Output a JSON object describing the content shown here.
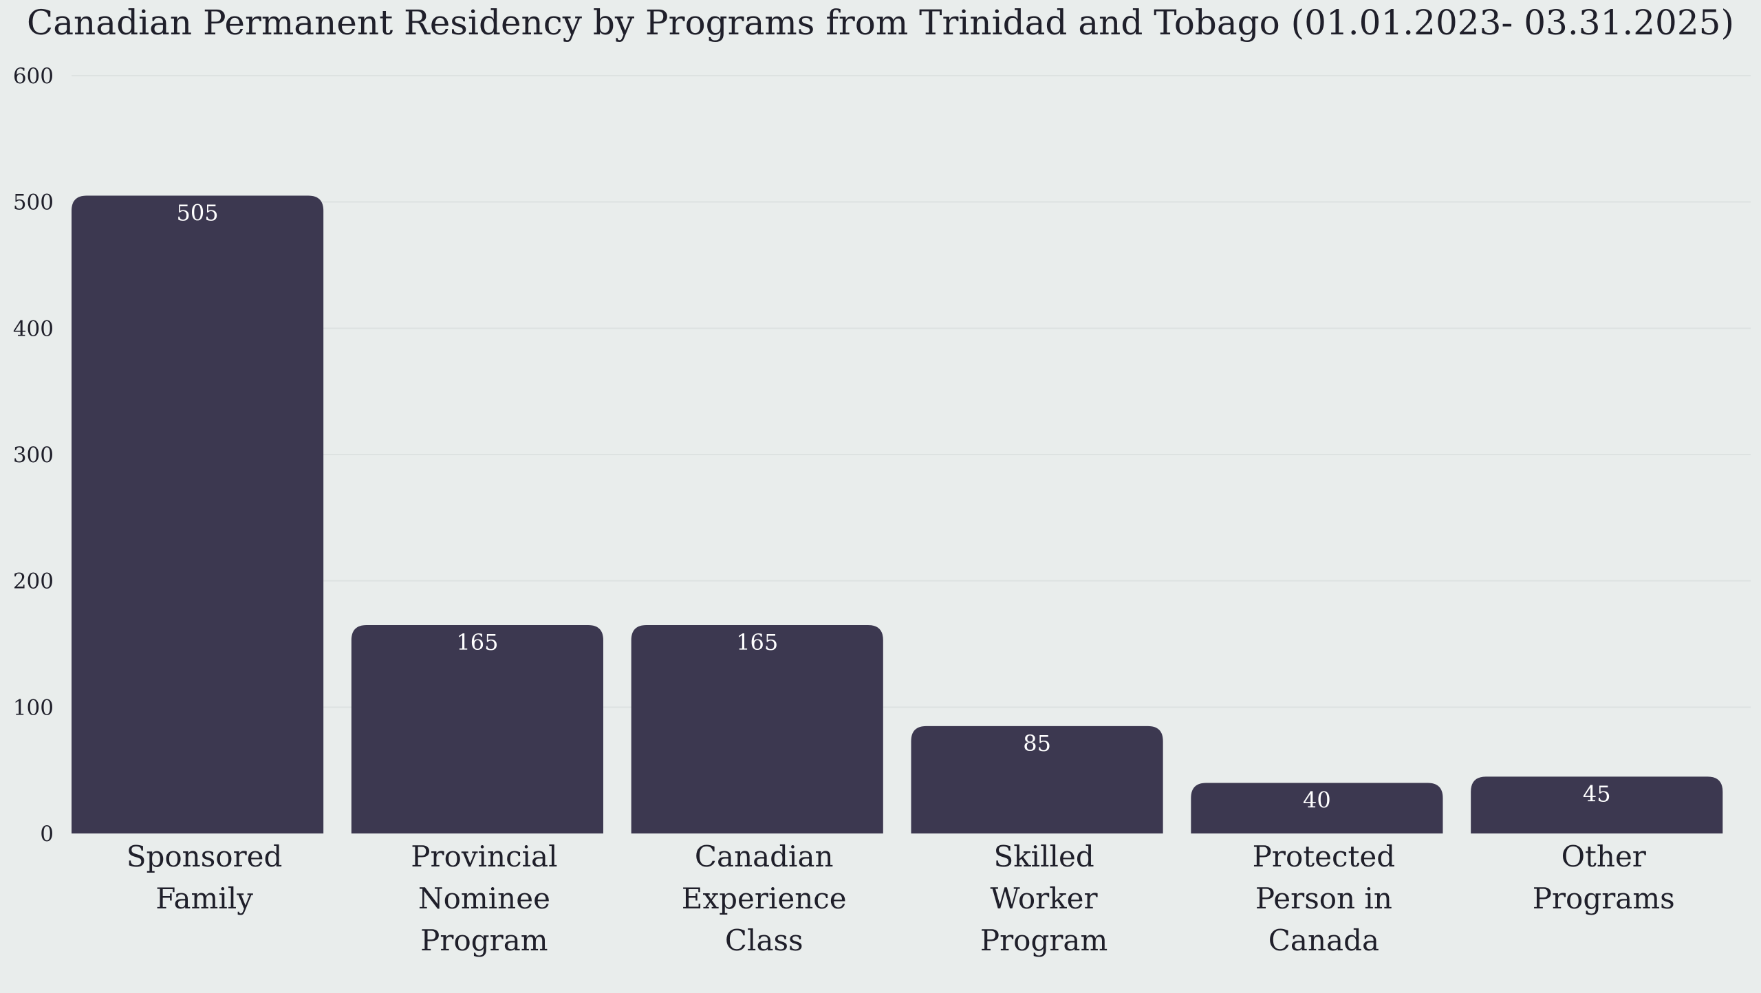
{
  "chart_data": {
    "type": "bar",
    "title": "Canadian Permanent Residency by Programs from Trinidad and Tobago (01.01.2023- 03.31.2025)",
    "categories": [
      [
        "Sponsored",
        "Family"
      ],
      [
        "Provincial",
        "Nominee",
        "Program"
      ],
      [
        "Canadian",
        "Experience",
        "Class"
      ],
      [
        "Skilled",
        "Worker",
        "Program"
      ],
      [
        "Protected",
        "Person in",
        "Canada"
      ],
      [
        "Other",
        "Programs"
      ]
    ],
    "values": [
      505,
      165,
      165,
      85,
      40,
      45
    ],
    "data_labels": [
      "505",
      "165",
      "165",
      "85",
      "40",
      "45"
    ],
    "xlabel": "",
    "ylabel": "",
    "ylim": [
      0,
      600
    ],
    "yticks": [
      0,
      100,
      200,
      300,
      400,
      500,
      600
    ],
    "grid": true,
    "legend": "none",
    "colors": {
      "bar": "#3c3850",
      "background": "#e9edec",
      "grid": "#dde2e1",
      "label": "#ffffff"
    }
  }
}
